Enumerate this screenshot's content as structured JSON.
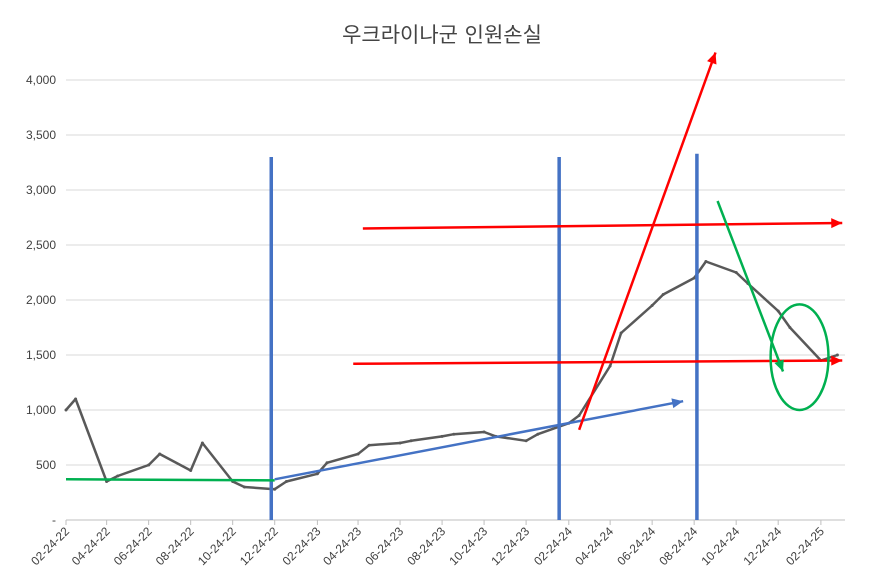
{
  "chart_data": {
    "type": "line",
    "title": "우크라이나군 인원손실",
    "xlabel": "",
    "ylabel": "",
    "ylim": [
      0,
      4000
    ],
    "y_ticks": [
      {
        "value": 0,
        "label": "-"
      },
      {
        "value": 500,
        "label": "500"
      },
      {
        "value": 1000,
        "label": "1,000"
      },
      {
        "value": 1500,
        "label": "1,500"
      },
      {
        "value": 2000,
        "label": "2,000"
      },
      {
        "value": 2500,
        "label": "2,500"
      },
      {
        "value": 3000,
        "label": "3,000"
      },
      {
        "value": 3500,
        "label": "3,500"
      },
      {
        "value": 4000,
        "label": "4,000"
      }
    ],
    "x_tick_labels": [
      "02-24-22",
      "04-24-22",
      "06-24-22",
      "08-24-22",
      "10-24-22",
      "12-24-22",
      "02-24-23",
      "04-24-23",
      "06-24-23",
      "08-24-23",
      "10-24-23",
      "12-24-23",
      "02-24-24",
      "04-24-24",
      "06-24-24",
      "08-24-24",
      "10-24-24",
      "12-24-24",
      "02-24-25"
    ],
    "grid": true,
    "legend": "none",
    "colors": {
      "series": "#595959",
      "grid": "#d9d9d9",
      "blue": "#4472c4",
      "red": "#ff0000",
      "green": "#00b050",
      "axis": "#bfbfbf"
    },
    "series": [
      {
        "x": [
          "02-24-22",
          "03-10-22",
          "04-24-22",
          "05-10-22",
          "06-24-22",
          "07-10-22",
          "08-24-22",
          "09-10-22",
          "10-24-22",
          "11-10-22",
          "12-24-22",
          "01-10-23",
          "02-24-23",
          "03-10-23",
          "04-24-23",
          "05-10-23",
          "06-24-23",
          "07-10-23",
          "08-24-23",
          "09-10-23",
          "10-24-23",
          "11-10-23",
          "12-24-23",
          "01-10-24",
          "02-24-24",
          "03-10-24",
          "04-24-24",
          "05-10-24",
          "06-24-24",
          "07-10-24",
          "08-24-24",
          "09-10-24",
          "10-24-24",
          "11-10-24",
          "12-24-24",
          "01-10-25",
          "02-24-25",
          "03-20-25"
        ],
        "values": [
          1000,
          1100,
          350,
          400,
          500,
          600,
          450,
          700,
          350,
          300,
          280,
          350,
          420,
          520,
          600,
          680,
          700,
          720,
          760,
          780,
          800,
          760,
          720,
          780,
          880,
          950,
          1400,
          1700,
          1950,
          2050,
          2200,
          2350,
          2250,
          2150,
          1900,
          1750,
          1450,
          1500
        ]
      }
    ],
    "annotation_lines": [
      {
        "color": "blue",
        "from": [
          "12-19-22",
          3300
        ],
        "to": [
          "12-19-22",
          0
        ]
      },
      {
        "color": "blue",
        "from": [
          "02-10-24",
          3300
        ],
        "to": [
          "02-10-24",
          0
        ]
      },
      {
        "color": "blue",
        "from": [
          "08-28-24",
          3330
        ],
        "to": [
          "08-28-24",
          0
        ]
      },
      {
        "color": "blue",
        "from": [
          "12-24-22",
          370
        ],
        "to": [
          "08-08-24",
          1080
        ],
        "arrow": true
      },
      {
        "color": "red",
        "from": [
          "05-01-23",
          2650
        ],
        "to": [
          "03-27-25",
          2700
        ],
        "arrow": true
      },
      {
        "color": "red",
        "from": [
          "04-17-23",
          1420
        ],
        "to": [
          "03-27-25",
          1450
        ],
        "arrow": true
      },
      {
        "color": "red",
        "from": [
          "03-10-24",
          820
        ],
        "to": [
          "09-24-24",
          4250
        ],
        "arrow": true
      },
      {
        "color": "green",
        "from": [
          "02-24-22",
          370
        ],
        "to": [
          "12-24-22",
          360
        ]
      },
      {
        "color": "green",
        "from": [
          "09-27-24",
          2900
        ],
        "to": [
          "12-31-24",
          1350
        ],
        "arrow": true
      }
    ],
    "annotation_ellipses": [
      {
        "color": "green",
        "center": [
          "01-24-25",
          1480
        ],
        "rx_days": 42,
        "ry_value": 480
      }
    ]
  }
}
